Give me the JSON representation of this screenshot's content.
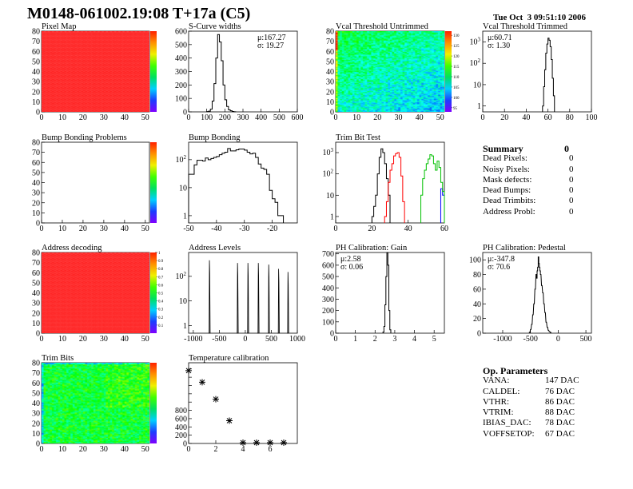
{
  "header": {
    "title": "M0148-061002.19:08 T+17a (C5)",
    "timestamp": "Tue Oct  3 09:51:10 2006"
  },
  "summary": {
    "title": "Summary",
    "total": "0",
    "rows": [
      {
        "label": "Dead Pixels:",
        "value": "0"
      },
      {
        "label": "Noisy Pixels:",
        "value": "0"
      },
      {
        "label": "Mask defects:",
        "value": "0"
      },
      {
        "label": "Dead Bumps:",
        "value": "0"
      },
      {
        "label": "Dead Trimbits:",
        "value": "0"
      },
      {
        "label": "Address Probl:",
        "value": "0"
      }
    ]
  },
  "op_parameters": {
    "title": "Op. Parameters",
    "rows": [
      {
        "label": "VANA:",
        "value": "147 DAC"
      },
      {
        "label": "CALDEL:",
        "value": "76 DAC"
      },
      {
        "label": "VTHR:",
        "value": "86 DAC"
      },
      {
        "label": "VTRIM:",
        "value": "88 DAC"
      },
      {
        "label": "IBIAS_DAC:",
        "value": "78 DAC"
      },
      {
        "label": "VOFFSETOP:",
        "value": "67 DAC"
      }
    ]
  },
  "chart_data": [
    {
      "type": "heatmap",
      "title": "Pixel Map",
      "xlim": [
        0,
        52
      ],
      "ylim": [
        0,
        80
      ],
      "zlim": [
        0,
        10
      ],
      "xticks": [
        0,
        10,
        20,
        30,
        40,
        50
      ],
      "yticks": [
        0,
        10,
        20,
        30,
        40,
        50,
        60,
        70,
        80
      ],
      "fill": "uniform-max",
      "zticks": []
    },
    {
      "type": "bar",
      "title": "S-Curve widths",
      "xlim": [
        0,
        600
      ],
      "ylim": [
        0,
        600
      ],
      "log_y": false,
      "xticks": [
        0,
        100,
        200,
        300,
        400,
        500,
        600
      ],
      "yticks": [
        0,
        100,
        200,
        300,
        400,
        500,
        600
      ],
      "stats": {
        "mu": "μ:167.27",
        "sigma": "σ: 19.27"
      },
      "series": [
        {
          "color": "#000000",
          "binwidth": 10,
          "x": [
            100,
            110,
            120,
            130,
            140,
            150,
            160,
            170,
            180,
            190,
            200,
            210,
            220,
            230,
            240,
            250
          ],
          "y": [
            2,
            5,
            20,
            80,
            210,
            400,
            575,
            520,
            380,
            200,
            90,
            40,
            15,
            8,
            3,
            1
          ]
        }
      ]
    },
    {
      "type": "heatmap",
      "title": "Vcal Threshold Untrimmed",
      "xlim": [
        0,
        52
      ],
      "ylim": [
        0,
        80
      ],
      "zlim": [
        93,
        132
      ],
      "xticks": [
        0,
        10,
        20,
        30,
        40,
        50
      ],
      "yticks": [
        0,
        10,
        20,
        30,
        40,
        50,
        60,
        70,
        80
      ],
      "fill": "vcal",
      "zticks": [
        95,
        100,
        105,
        110,
        115,
        120,
        125,
        130
      ]
    },
    {
      "type": "bar",
      "title": "Vcal Threshold Trimmed",
      "xlim": [
        0,
        100
      ],
      "ylim": [
        0.53,
        3200
      ],
      "log_y": true,
      "xticks": [
        0,
        20,
        40,
        60,
        80,
        100
      ],
      "yticks": [
        1,
        10,
        100,
        1000
      ],
      "stats": {
        "mu": "μ:60.71",
        "sigma": "σ: 1.30"
      },
      "series": [
        {
          "color": "#000000",
          "binwidth": 1,
          "x": [
            55,
            56,
            57,
            58,
            59,
            60,
            61,
            62,
            63,
            64,
            65
          ],
          "y": [
            1,
            8,
            50,
            300,
            800,
            1500,
            1200,
            600,
            150,
            20,
            3
          ]
        }
      ]
    },
    {
      "type": "heatmap",
      "title": "Bump Bonding Problems",
      "xlim": [
        0,
        52
      ],
      "ylim": [
        0,
        80
      ],
      "zlim": [
        -2,
        2
      ],
      "xticks": [
        0,
        10,
        20,
        30,
        40,
        50
      ],
      "yticks": [
        0,
        10,
        20,
        30,
        40,
        50,
        60,
        70,
        80
      ],
      "fill": "empty",
      "zticks": []
    },
    {
      "type": "bar",
      "title": "Bump Bonding",
      "xlim": [
        -50,
        -11
      ],
      "ylim": [
        0.55,
        420
      ],
      "log_y": true,
      "xticks": [
        -50,
        -40,
        -30,
        -20
      ],
      "yticks": [
        1,
        10,
        100
      ],
      "series": [
        {
          "color": "#000000",
          "binwidth": 1,
          "x": [
            -50,
            -49,
            -48,
            -47,
            -46,
            -45,
            -44,
            -43,
            -42,
            -41,
            -40,
            -39,
            -38,
            -37,
            -36,
            -35,
            -34,
            -33,
            -32,
            -31,
            -30,
            -29,
            -28,
            -27,
            -26,
            -25,
            -24,
            -23,
            -22,
            -21,
            -20,
            -19,
            -18,
            -17
          ],
          "y": [
            30,
            30,
            65,
            95,
            95,
            90,
            115,
            100,
            110,
            120,
            130,
            150,
            170,
            185,
            250,
            205,
            205,
            225,
            240,
            240,
            220,
            185,
            160,
            170,
            120,
            70,
            50,
            45,
            30,
            8,
            4,
            3,
            1,
            1
          ]
        }
      ]
    },
    {
      "type": "bar",
      "title": "Trim Bit Test",
      "xlim": [
        0,
        60
      ],
      "ylim": [
        0.5,
        3070
      ],
      "log_y": true,
      "xticks": [
        0,
        20,
        40,
        60
      ],
      "yticks": [
        1,
        10,
        100,
        1000
      ],
      "series": [
        {
          "color": "#000000",
          "binwidth": 1,
          "x": [
            20,
            21,
            22,
            23,
            24,
            25,
            26,
            27,
            28,
            29
          ],
          "y": [
            1,
            3,
            10,
            100,
            600,
            1500,
            1000,
            300,
            60,
            10
          ]
        },
        {
          "color": "#ff0000",
          "binwidth": 1,
          "x": [
            27,
            28,
            29,
            30,
            31,
            32,
            33,
            34,
            35,
            36,
            37
          ],
          "y": [
            1,
            5,
            40,
            150,
            300,
            700,
            900,
            1000,
            600,
            80,
            5
          ]
        },
        {
          "color": "#0000ff",
          "binwidth": 1,
          "x": [
            58,
            59
          ],
          "y": [
            20,
            10
          ]
        },
        {
          "color": "#00c000",
          "binwidth": 1,
          "x": [
            47,
            48,
            49,
            50,
            51,
            52,
            53,
            54,
            55,
            56,
            57,
            58,
            59
          ],
          "y": [
            10,
            60,
            150,
            300,
            500,
            800,
            700,
            300,
            150,
            400,
            200,
            40,
            15
          ]
        }
      ]
    },
    {
      "type": "heatmap",
      "title": "Address decoding",
      "xlim": [
        0,
        52
      ],
      "ylim": [
        0,
        80
      ],
      "zlim": [
        0,
        1
      ],
      "xticks": [
        0,
        10,
        20,
        30,
        40,
        50
      ],
      "yticks": [
        0,
        10,
        20,
        30,
        40,
        50,
        60,
        70,
        80
      ],
      "fill": "uniform-max",
      "zticks": [
        0.1,
        0.2,
        0.3,
        0.4,
        0.5,
        0.6,
        0.7,
        0.8,
        0.9,
        1
      ]
    },
    {
      "type": "bar",
      "title": "Address Levels",
      "xlim": [
        -1090,
        1000
      ],
      "ylim": [
        0.49,
        930
      ],
      "log_y": true,
      "xticks": [
        -1000,
        -500,
        0,
        500,
        1000
      ],
      "yticks": [
        1,
        10,
        100
      ],
      "series": [
        {
          "color": "#000000",
          "binwidth": 10,
          "peaks": true,
          "x": [
            -690,
            -150,
            50,
            250,
            450,
            640,
            820
          ],
          "y": [
            450,
            350,
            350,
            350,
            300,
            200,
            150
          ]
        }
      ]
    },
    {
      "type": "bar",
      "title": "PH Calibration: Gain",
      "xlim": [
        0,
        5.52
      ],
      "ylim": [
        0,
        712
      ],
      "log_y": false,
      "xticks": [
        0,
        1,
        2,
        3,
        4,
        5
      ],
      "yticks": [
        0,
        100,
        200,
        300,
        400,
        500,
        600,
        700
      ],
      "stats": {
        "mu": "μ:2.58",
        "sigma": "σ: 0.06"
      },
      "series": [
        {
          "color": "#000000",
          "binwidth": 0.05,
          "x": [
            2.4,
            2.45,
            2.5,
            2.55,
            2.6,
            2.65,
            2.7,
            2.75
          ],
          "y": [
            10,
            60,
            250,
            500,
            710,
            600,
            200,
            30
          ]
        }
      ]
    },
    {
      "type": "bar",
      "title": "PH Calibration: Pedestal",
      "xlim": [
        -1360,
        600
      ],
      "ylim": [
        0,
        110
      ],
      "log_y": false,
      "xticks": [
        -1000,
        -500,
        0,
        500
      ],
      "yticks": [
        0,
        20,
        40,
        60,
        80,
        100
      ],
      "stats": {
        "mu": "μ:-347.8",
        "sigma": "σ: 70.6"
      },
      "series": [
        {
          "color": "#000000",
          "binwidth": 10,
          "x": [
            -520,
            -500,
            -480,
            -460,
            -440,
            -420,
            -400,
            -390,
            -380,
            -370,
            -360,
            -350,
            -340,
            -330,
            -320,
            -300,
            -280,
            -260,
            -240,
            -220,
            -200,
            -180,
            -160,
            -140
          ],
          "y": [
            1,
            5,
            12,
            25,
            40,
            60,
            80,
            75,
            85,
            90,
            104,
            95,
            90,
            85,
            80,
            65,
            55,
            40,
            28,
            15,
            8,
            4,
            2,
            1
          ]
        }
      ]
    },
    {
      "type": "heatmap",
      "title": "Trim Bits",
      "xlim": [
        0,
        52
      ],
      "ylim": [
        0,
        80
      ],
      "zlim": [
        0,
        16
      ],
      "xticks": [
        0,
        10,
        20,
        30,
        40,
        50
      ],
      "yticks": [
        0,
        10,
        20,
        30,
        40,
        50,
        60,
        70,
        80
      ],
      "fill": "trim",
      "zticks": []
    },
    {
      "type": "scatter",
      "title": "Temperature calibration",
      "xlim": [
        0,
        8
      ],
      "ylim": [
        0,
        1950
      ],
      "xticks": [
        0,
        2,
        4,
        6
      ],
      "yticks": [
        0,
        200,
        400,
        600,
        800
      ],
      "minor_yticks": [
        1000,
        1200,
        1400,
        1600,
        1800
      ],
      "series": [
        {
          "color": "#000000",
          "marker": "asterisk",
          "x": [
            0,
            1,
            2,
            3,
            4,
            5,
            6,
            7
          ],
          "y": [
            1760,
            1480,
            1070,
            550,
            20,
            20,
            20,
            20
          ]
        }
      ]
    }
  ]
}
